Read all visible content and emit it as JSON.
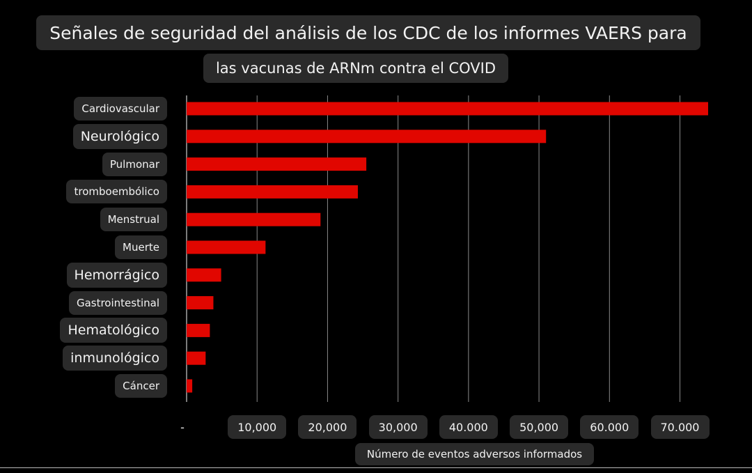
{
  "chart_data": {
    "type": "bar",
    "orientation": "horizontal",
    "title": "Señales de seguridad del análisis de los CDC de los informes VAERS para",
    "subtitle": "las vacunas de ARNm contra el COVID",
    "xlabel": "Número de eventos adversos informados",
    "ylabel": "",
    "categories": [
      "Cardiovascular",
      "Neurológico",
      "Pulmonar",
      "tromboembólico",
      "Menstrual",
      "Muerte",
      "Hemorrágico",
      "Gastrointestinal",
      "Hematológico",
      "inmunológico",
      "Cáncer"
    ],
    "values": [
      74000,
      51000,
      25500,
      24300,
      19000,
      11200,
      4900,
      3800,
      3300,
      2700,
      800
    ],
    "xlim": [
      0,
      74000
    ],
    "xticks": [
      0,
      10000,
      20000,
      30000,
      40000,
      50000,
      60000,
      70000
    ],
    "xtick_labels": [
      "-",
      "10,000",
      "20,000",
      "30,000",
      "40.000",
      "50,000",
      "60.000",
      "70.000"
    ],
    "grid": "vertical",
    "bar_color": "#e10600"
  }
}
